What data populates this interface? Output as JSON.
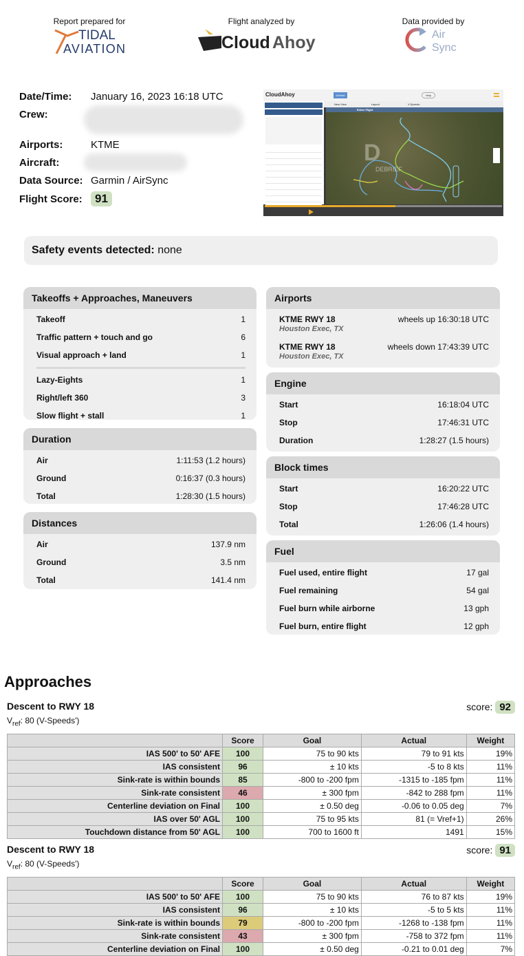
{
  "header": {
    "prepared_for_caption": "Report prepared for",
    "prepared_for_logo": "TIDAL AVIATION",
    "analyzed_by_caption": "Flight analyzed by",
    "analyzed_by_logo": "CloudAhoy",
    "data_by_caption": "Data provided by",
    "data_by_logo": "Air Sync"
  },
  "info": {
    "date_label": "Date/Time:",
    "date_value": "January 16, 2023 16:18 UTC",
    "crew_label": "Crew:",
    "airports_label": "Airports:",
    "airports_value": "KTME",
    "aircraft_label": "Aircraft:",
    "source_label": "Data Source:",
    "source_value": "Garmin / AirSync",
    "score_label": "Flight Score:",
    "score_value": "91"
  },
  "thumbnail": {
    "app": "CloudAhoy",
    "tab": "Debrief",
    "help": "Help",
    "new_view": "New View",
    "layout": "Layout",
    "vspeeds": "V-Speeds",
    "view": "Entire Flight",
    "watermark": "DEBRIEF"
  },
  "safety": {
    "label": "Safety events detected:",
    "value": "none"
  },
  "cards_left": [
    {
      "title": "Takeoffs + Approaches, Maneuvers",
      "rows": [
        [
          "Takeoff",
          "1"
        ],
        [
          "Traffic pattern + touch and go",
          "6"
        ],
        [
          "Visual approach + land",
          "1"
        ],
        null,
        [
          "Lazy-Eights",
          "1"
        ],
        [
          "Right/left 360",
          "3"
        ],
        [
          "Slow flight + stall",
          "1"
        ]
      ]
    },
    {
      "title": "Duration",
      "rows": [
        [
          "Air",
          "1:11:53 (1.2 hours)"
        ],
        [
          "Ground",
          "0:16:37 (0.3 hours)"
        ],
        [
          "Total",
          "1:28:30 (1.5 hours)"
        ]
      ]
    },
    {
      "title": "Distances",
      "rows": [
        [
          "Air",
          "137.9 nm"
        ],
        [
          "Ground",
          "3.5 nm"
        ],
        [
          "Total",
          "141.4 nm"
        ]
      ]
    }
  ],
  "airports": {
    "title": "Airports",
    "rows": [
      {
        "runway": "KTME RWY 18",
        "city": "Houston Exec, TX",
        "event": "wheels up 16:30:18 UTC"
      },
      {
        "runway": "KTME RWY 18",
        "city": "Houston Exec, TX",
        "event": "wheels down 17:43:39 UTC"
      }
    ]
  },
  "cards_right": [
    {
      "title": "Engine",
      "rows": [
        [
          "Start",
          "16:18:04 UTC"
        ],
        [
          "Stop",
          "17:46:31 UTC"
        ],
        [
          "Duration",
          "1:28:27 (1.5 hours)"
        ]
      ]
    },
    {
      "title": "Block times",
      "rows": [
        [
          "Start",
          "16:20:22 UTC"
        ],
        [
          "Stop",
          "17:46:28 UTC"
        ],
        [
          "Total",
          "1:26:06 (1.4 hours)"
        ]
      ]
    },
    {
      "title": "Fuel",
      "rows": [
        [
          "Fuel used, entire flight",
          "17 gal"
        ],
        [
          "Fuel remaining",
          "54 gal"
        ],
        [
          "Fuel burn while airborne",
          "13 gph"
        ],
        [
          "Fuel burn, entire flight",
          "12 gph"
        ]
      ]
    }
  ],
  "approaches": {
    "title": "Approaches",
    "columns": [
      "",
      "Score",
      "Goal",
      "Actual",
      "Weight"
    ],
    "items": [
      {
        "name": "Descent to RWY 18",
        "score_label": "score:",
        "score": "92",
        "vref_v": "V",
        "vref_sub": "ref",
        "vref_rest": ": 80 (V-Speeds')",
        "rows": [
          [
            "IAS 500' to 50' AFE",
            "100",
            "green",
            "75 to 90 kts",
            "79 to 91 kts",
            "19%"
          ],
          [
            "IAS consistent",
            "96",
            "green",
            "± 10 kts",
            "-5 to 8 kts",
            "11%"
          ],
          [
            "Sink-rate is within bounds",
            "85",
            "green",
            "-800 to -200 fpm",
            "-1315 to -185 fpm",
            "11%"
          ],
          [
            "Sink-rate consistent",
            "46",
            "red",
            "± 300 fpm",
            "-842 to 288 fpm",
            "11%"
          ],
          [
            "Centerline deviation on Final",
            "100",
            "green",
            "± 0.50 deg",
            "-0.06 to 0.05 deg",
            "7%"
          ],
          [
            "IAS over 50' AGL",
            "100",
            "green",
            "75 to 95 kts",
            "81 (= Vref+1)",
            "26%"
          ],
          [
            "Touchdown distance from 50' AGL",
            "100",
            "green",
            "700 to 1600 ft",
            "1491",
            "15%"
          ]
        ]
      },
      {
        "name": "Descent to RWY 18",
        "score_label": "score:",
        "score": "91",
        "vref_v": "V",
        "vref_sub": "ref",
        "vref_rest": ": 80 (V-Speeds')",
        "rows": [
          [
            "IAS 500' to 50' AFE",
            "100",
            "green",
            "75 to 90 kts",
            "76 to 87 kts",
            "19%"
          ],
          [
            "IAS consistent",
            "96",
            "green",
            "± 10 kts",
            "-5 to 5 kts",
            "11%"
          ],
          [
            "Sink-rate is within bounds",
            "79",
            "yellow",
            "-800 to -200 fpm",
            "-1268 to -138 fpm",
            "11%"
          ],
          [
            "Sink-rate consistent",
            "43",
            "red",
            "± 300 fpm",
            "-758 to 372 fpm",
            "11%"
          ],
          [
            "Centerline deviation on Final",
            "100",
            "green",
            "± 0.50 deg",
            "-0.21 to 0.01 deg",
            "7%"
          ]
        ]
      }
    ]
  }
}
